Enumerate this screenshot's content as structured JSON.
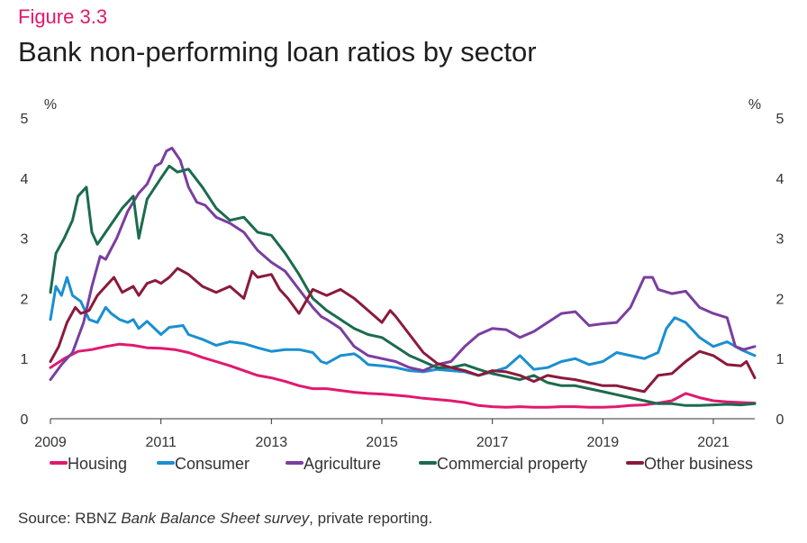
{
  "figure_label": "Figure 3.3",
  "source": {
    "prefix": "Source: RBNZ ",
    "italic": "Bank Balance Sheet survey",
    "suffix": ", private reporting."
  },
  "chart_data": {
    "type": "line",
    "title": "Bank non-performing loan ratios by sector",
    "y_unit_left": "%",
    "y_unit_right": "%",
    "xlim": [
      2009,
      2021.75
    ],
    "ylim": [
      0,
      5
    ],
    "yticks": [
      0,
      1,
      2,
      3,
      4,
      5
    ],
    "xticks": [
      2009,
      2011,
      2013,
      2015,
      2017,
      2019,
      2021
    ],
    "grid": false,
    "legend": "bottom",
    "series": [
      {
        "name": "Housing",
        "color": "#e0196e",
        "x": [
          2009,
          2009.25,
          2009.5,
          2009.75,
          2010,
          2010.25,
          2010.5,
          2010.75,
          2011,
          2011.25,
          2011.5,
          2011.75,
          2012,
          2012.25,
          2012.5,
          2012.75,
          2013,
          2013.25,
          2013.5,
          2013.75,
          2014,
          2014.25,
          2014.5,
          2014.75,
          2015,
          2015.25,
          2015.5,
          2015.75,
          2016,
          2016.25,
          2016.5,
          2016.75,
          2017,
          2017.25,
          2017.5,
          2017.75,
          2018,
          2018.25,
          2018.5,
          2018.75,
          2019,
          2019.25,
          2019.5,
          2019.75,
          2020,
          2020.25,
          2020.5,
          2020.75,
          2021,
          2021.25,
          2021.5,
          2021.75
        ],
        "values": [
          0.85,
          1.0,
          1.12,
          1.15,
          1.2,
          1.24,
          1.22,
          1.18,
          1.17,
          1.15,
          1.1,
          1.02,
          0.95,
          0.88,
          0.8,
          0.72,
          0.68,
          0.62,
          0.55,
          0.5,
          0.5,
          0.47,
          0.44,
          0.42,
          0.41,
          0.39,
          0.37,
          0.34,
          0.32,
          0.3,
          0.27,
          0.22,
          0.2,
          0.19,
          0.2,
          0.19,
          0.19,
          0.2,
          0.2,
          0.19,
          0.19,
          0.2,
          0.22,
          0.23,
          0.26,
          0.3,
          0.42,
          0.35,
          0.3,
          0.28,
          0.27,
          0.26
        ]
      },
      {
        "name": "Consumer",
        "color": "#1a8fd1",
        "x": [
          2009,
          2009.1,
          2009.2,
          2009.3,
          2009.4,
          2009.55,
          2009.7,
          2009.85,
          2010,
          2010.1,
          2010.25,
          2010.4,
          2010.5,
          2010.6,
          2010.75,
          2011,
          2011.15,
          2011.4,
          2011.5,
          2011.75,
          2012,
          2012.25,
          2012.5,
          2012.75,
          2013,
          2013.25,
          2013.5,
          2013.75,
          2013.9,
          2014,
          2014.25,
          2014.5,
          2014.6,
          2014.75,
          2015,
          2015.25,
          2015.5,
          2015.75,
          2016,
          2016.25,
          2016.5,
          2016.75,
          2017,
          2017.25,
          2017.5,
          2017.75,
          2018,
          2018.25,
          2018.5,
          2018.75,
          2019,
          2019.25,
          2019.5,
          2019.75,
          2020,
          2020.15,
          2020.3,
          2020.5,
          2020.75,
          2021,
          2021.25,
          2021.5,
          2021.75
        ],
        "values": [
          1.65,
          2.2,
          2.05,
          2.35,
          2.05,
          1.95,
          1.65,
          1.6,
          1.85,
          1.75,
          1.65,
          1.6,
          1.65,
          1.5,
          1.62,
          1.4,
          1.52,
          1.55,
          1.4,
          1.32,
          1.22,
          1.28,
          1.25,
          1.18,
          1.12,
          1.15,
          1.15,
          1.1,
          0.95,
          0.92,
          1.05,
          1.08,
          1.02,
          0.9,
          0.88,
          0.85,
          0.8,
          0.78,
          0.82,
          0.8,
          0.78,
          0.72,
          0.78,
          0.85,
          1.05,
          0.82,
          0.85,
          0.95,
          1.0,
          0.9,
          0.95,
          1.1,
          1.05,
          1.0,
          1.1,
          1.5,
          1.68,
          1.6,
          1.35,
          1.2,
          1.28,
          1.15,
          1.05
        ]
      },
      {
        "name": "Agriculture",
        "color": "#7a3ea0",
        "x": [
          2009,
          2009.2,
          2009.4,
          2009.6,
          2009.75,
          2009.9,
          2010,
          2010.2,
          2010.4,
          2010.6,
          2010.75,
          2010.9,
          2011,
          2011.1,
          2011.2,
          2011.35,
          2011.5,
          2011.65,
          2011.8,
          2012,
          2012.25,
          2012.5,
          2012.75,
          2013,
          2013.25,
          2013.5,
          2013.75,
          2013.9,
          2014,
          2014.25,
          2014.5,
          2014.75,
          2015,
          2015.25,
          2015.5,
          2015.75,
          2016,
          2016.25,
          2016.5,
          2016.75,
          2017,
          2017.25,
          2017.5,
          2017.75,
          2018,
          2018.25,
          2018.5,
          2018.75,
          2019,
          2019.25,
          2019.5,
          2019.75,
          2019.9,
          2020,
          2020.25,
          2020.5,
          2020.75,
          2021,
          2021.25,
          2021.4,
          2021.55,
          2021.75
        ],
        "values": [
          0.65,
          0.9,
          1.1,
          1.6,
          2.2,
          2.7,
          2.65,
          3.0,
          3.45,
          3.75,
          3.9,
          4.2,
          4.25,
          4.45,
          4.5,
          4.3,
          3.85,
          3.6,
          3.55,
          3.35,
          3.25,
          3.1,
          2.8,
          2.6,
          2.45,
          2.15,
          1.85,
          1.7,
          1.65,
          1.5,
          1.2,
          1.05,
          1.0,
          0.95,
          0.85,
          0.8,
          0.9,
          0.95,
          1.2,
          1.4,
          1.5,
          1.48,
          1.35,
          1.45,
          1.6,
          1.75,
          1.78,
          1.55,
          1.58,
          1.6,
          1.85,
          2.35,
          2.35,
          2.15,
          2.08,
          2.12,
          1.85,
          1.75,
          1.68,
          1.2,
          1.15,
          1.2
        ]
      },
      {
        "name": "Commercial property",
        "color": "#1b6b4e",
        "x": [
          2009,
          2009.1,
          2009.25,
          2009.4,
          2009.5,
          2009.65,
          2009.75,
          2009.85,
          2010,
          2010.15,
          2010.3,
          2010.5,
          2010.6,
          2010.75,
          2011,
          2011.15,
          2011.3,
          2011.5,
          2011.75,
          2012,
          2012.25,
          2012.5,
          2012.75,
          2013,
          2013.25,
          2013.5,
          2013.75,
          2014,
          2014.25,
          2014.5,
          2014.75,
          2015,
          2015.25,
          2015.5,
          2015.75,
          2016,
          2016.25,
          2016.5,
          2016.75,
          2017,
          2017.25,
          2017.5,
          2017.75,
          2018,
          2018.25,
          2018.5,
          2018.75,
          2019,
          2019.25,
          2019.5,
          2019.75,
          2020,
          2020.25,
          2020.5,
          2020.75,
          2021,
          2021.25,
          2021.5,
          2021.75
        ],
        "values": [
          2.1,
          2.75,
          3.0,
          3.3,
          3.7,
          3.85,
          3.1,
          2.9,
          3.1,
          3.3,
          3.5,
          3.7,
          3.0,
          3.65,
          4.0,
          4.2,
          4.1,
          4.15,
          3.85,
          3.5,
          3.3,
          3.35,
          3.1,
          3.05,
          2.75,
          2.4,
          2.0,
          1.8,
          1.65,
          1.5,
          1.4,
          1.35,
          1.2,
          1.05,
          0.95,
          0.85,
          0.85,
          0.9,
          0.82,
          0.75,
          0.7,
          0.65,
          0.72,
          0.6,
          0.55,
          0.55,
          0.5,
          0.45,
          0.4,
          0.35,
          0.3,
          0.25,
          0.25,
          0.22,
          0.22,
          0.23,
          0.24,
          0.23,
          0.25
        ]
      },
      {
        "name": "Other business",
        "color": "#8b1a3a",
        "x": [
          2009,
          2009.15,
          2009.3,
          2009.45,
          2009.55,
          2009.7,
          2009.85,
          2010,
          2010.15,
          2010.3,
          2010.5,
          2010.6,
          2010.75,
          2010.9,
          2011,
          2011.15,
          2011.3,
          2011.5,
          2011.75,
          2012,
          2012.25,
          2012.5,
          2012.65,
          2012.75,
          2013,
          2013.15,
          2013.3,
          2013.5,
          2013.75,
          2014,
          2014.25,
          2014.5,
          2014.75,
          2015,
          2015.15,
          2015.25,
          2015.5,
          2015.75,
          2016,
          2016.25,
          2016.5,
          2016.75,
          2017,
          2017.25,
          2017.5,
          2017.75,
          2018,
          2018.25,
          2018.5,
          2018.75,
          2019,
          2019.25,
          2019.5,
          2019.75,
          2020,
          2020.25,
          2020.5,
          2020.75,
          2021,
          2021.25,
          2021.5,
          2021.6,
          2021.75
        ],
        "values": [
          0.95,
          1.2,
          1.6,
          1.85,
          1.75,
          1.8,
          2.05,
          2.2,
          2.35,
          2.1,
          2.2,
          2.05,
          2.25,
          2.3,
          2.25,
          2.35,
          2.5,
          2.4,
          2.2,
          2.1,
          2.2,
          2.0,
          2.45,
          2.35,
          2.4,
          2.15,
          2.0,
          1.75,
          2.15,
          2.05,
          2.15,
          2.0,
          1.8,
          1.6,
          1.8,
          1.7,
          1.4,
          1.1,
          0.92,
          0.85,
          0.8,
          0.72,
          0.8,
          0.78,
          0.72,
          0.62,
          0.72,
          0.68,
          0.65,
          0.6,
          0.55,
          0.55,
          0.5,
          0.45,
          0.72,
          0.75,
          0.95,
          1.12,
          1.05,
          0.9,
          0.88,
          0.95,
          0.68
        ]
      }
    ]
  }
}
